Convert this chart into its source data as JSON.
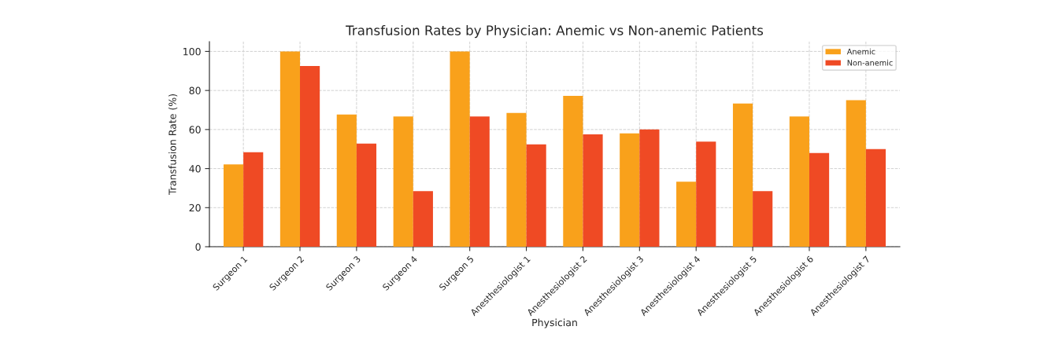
{
  "chart_data": {
    "type": "bar",
    "title": "Transfusion Rates by Physician: Anemic vs Non-anemic Patients",
    "xlabel": "Physician",
    "ylabel": "Transfusion Rate (%)",
    "categories": [
      "Surgeon 1",
      "Surgeon 2",
      "Surgeon 3",
      "Surgeon 4",
      "Surgeon 5",
      "Anesthesiologist 1",
      "Anesthesiologist 2",
      "Anesthesiologist 3",
      "Anesthesiologist 4",
      "Anesthesiologist 5",
      "Anesthesiologist 6",
      "Anesthesiologist 7"
    ],
    "series": [
      {
        "name": "Anemic",
        "color": "#f9a11b",
        "values": [
          42.1,
          100,
          67.7,
          66.7,
          100,
          68.5,
          77.2,
          58,
          33.3,
          73.3,
          66.7,
          75
        ]
      },
      {
        "name": "Non-anemic",
        "color": "#ef4a24",
        "values": [
          48.4,
          92.5,
          52.8,
          28.5,
          66.7,
          52.4,
          57.5,
          60,
          53.8,
          28.5,
          48,
          50
        ]
      }
    ],
    "ylim": [
      0,
      105
    ],
    "yticks": [
      0,
      20,
      40,
      60,
      80,
      100
    ],
    "grid": true,
    "legend": "top right"
  }
}
